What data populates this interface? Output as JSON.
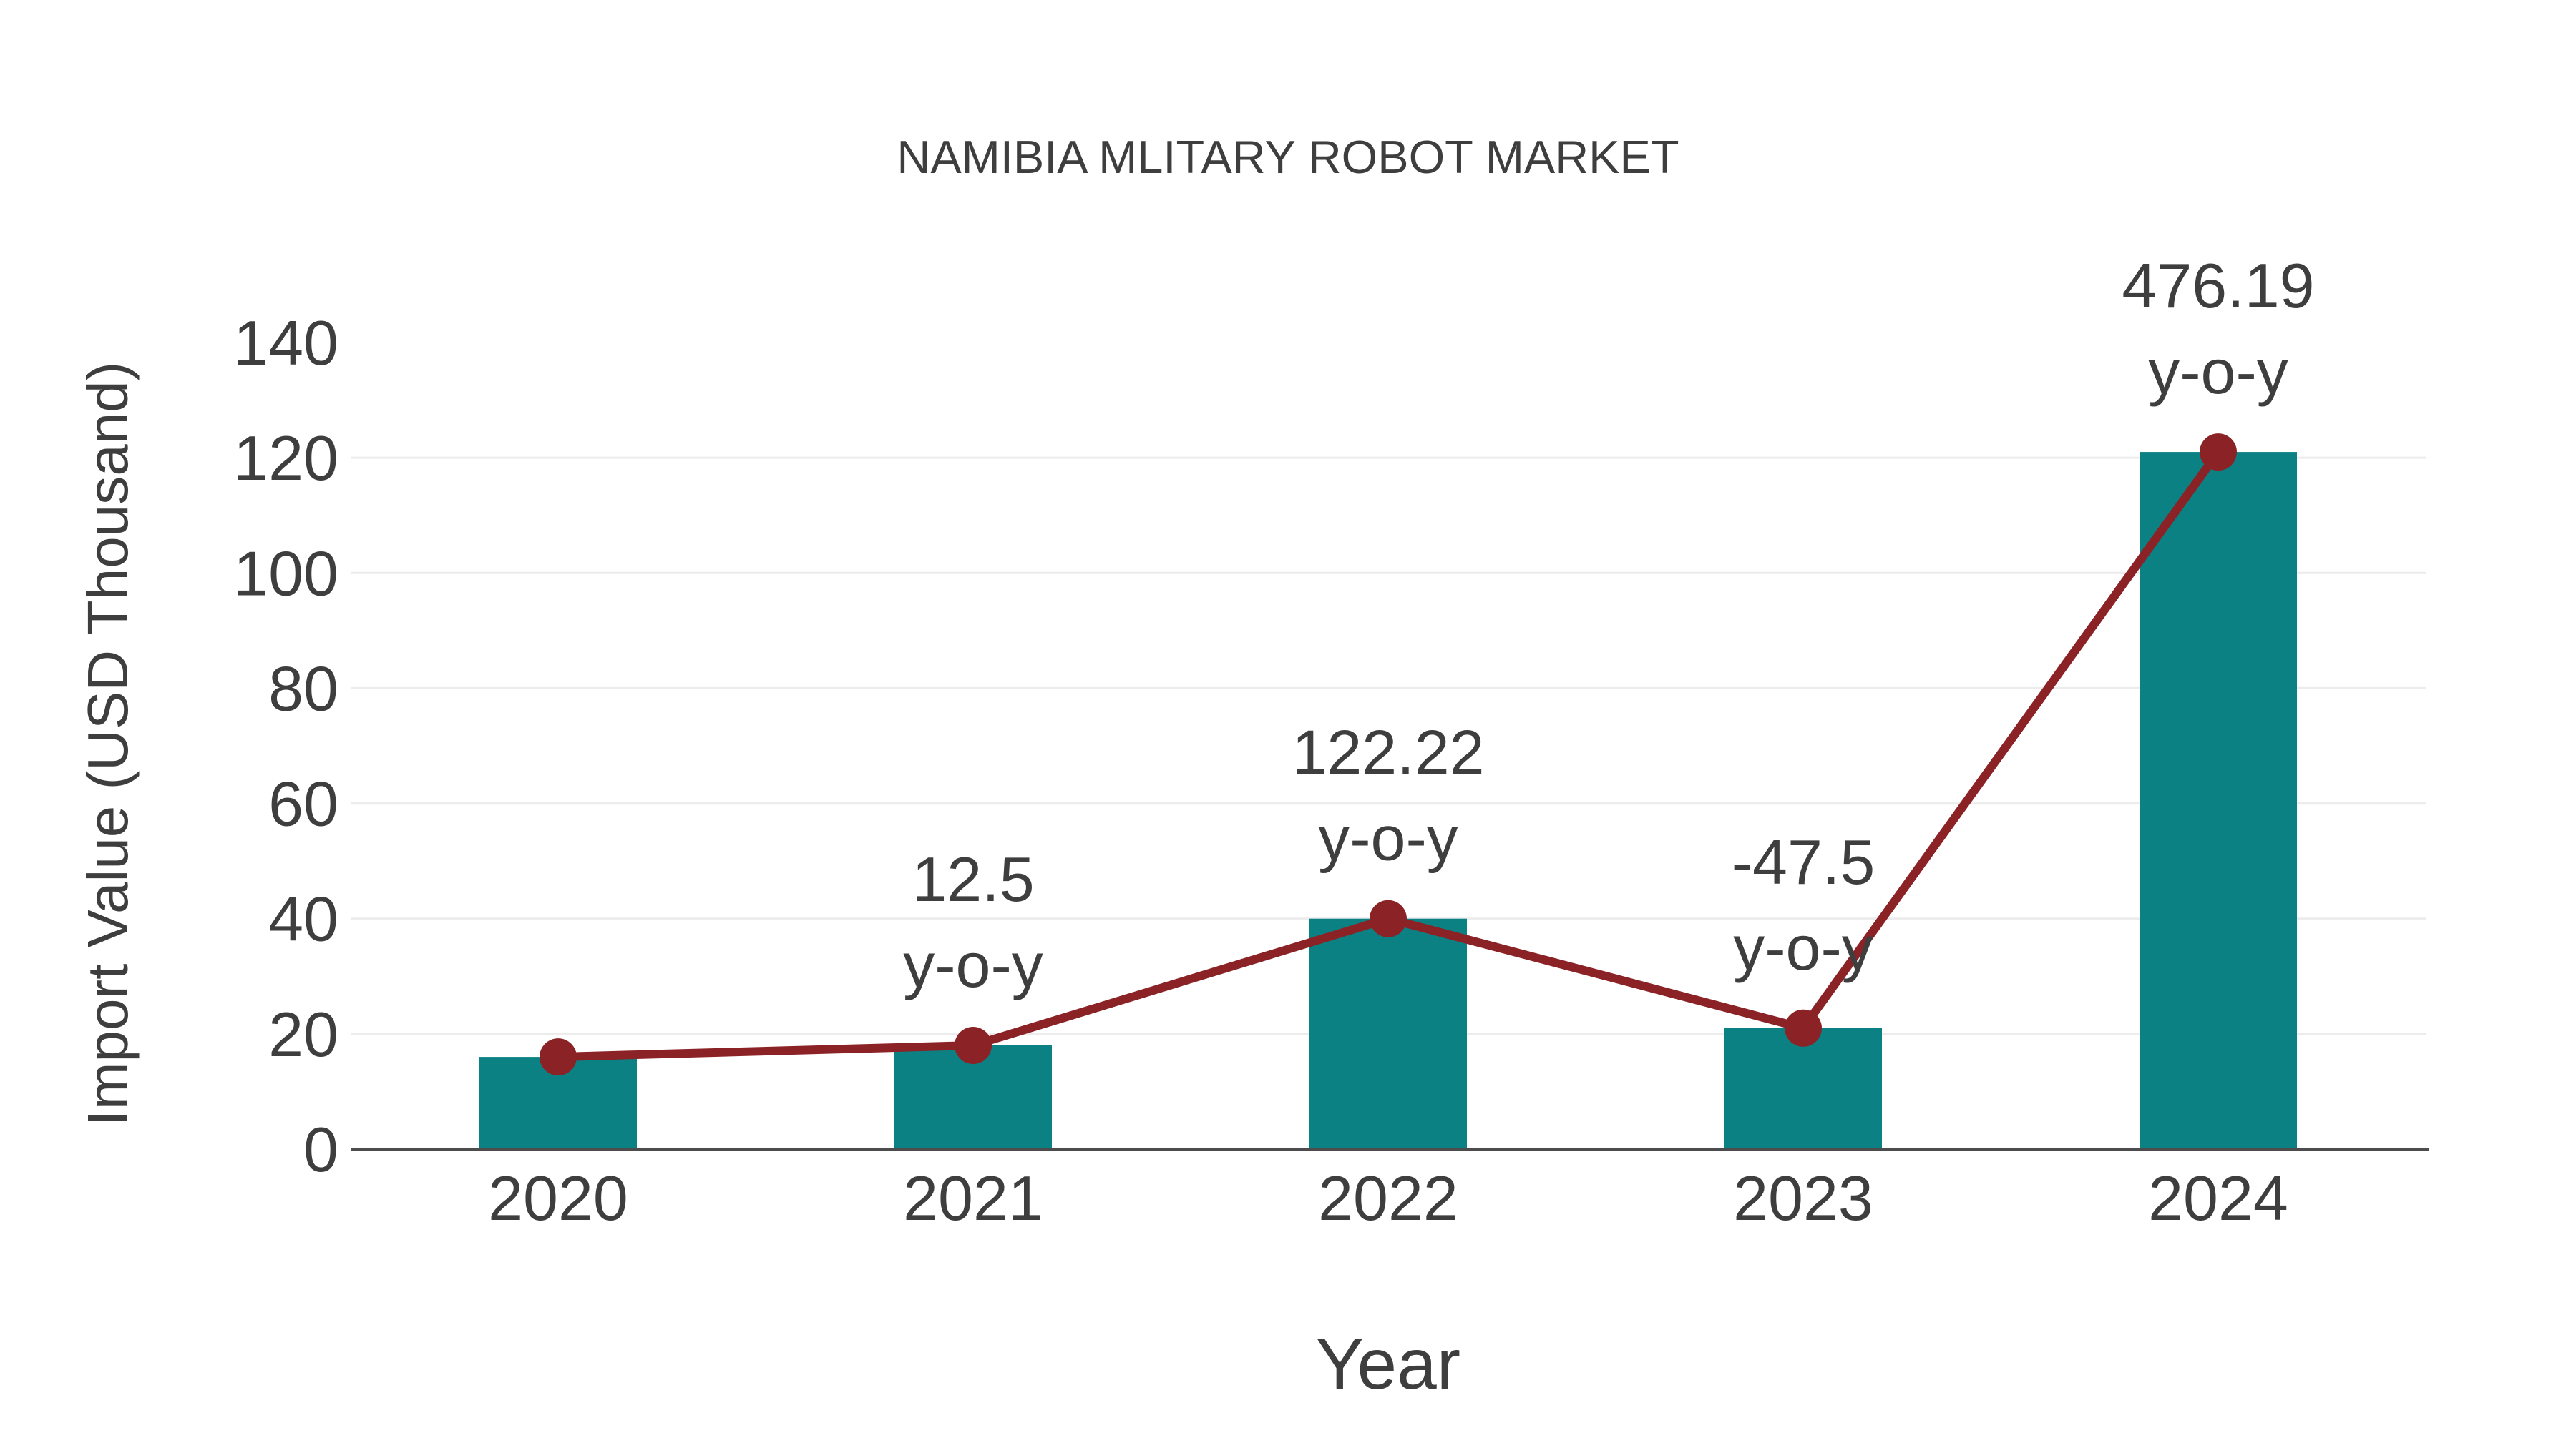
{
  "chart_data": {
    "type": "bar",
    "title": "NAMIBIA MLITARY ROBOT MARKET",
    "xlabel": "Year",
    "ylabel": "Import Value (USD Thousand)",
    "categories": [
      "2020",
      "2021",
      "2022",
      "2023",
      "2024"
    ],
    "series": [
      {
        "name": "import-value-bars",
        "type": "bar",
        "values": [
          16,
          18,
          40,
          21,
          121
        ]
      },
      {
        "name": "import-value-trend",
        "type": "line",
        "values": [
          16,
          18,
          40,
          21,
          121
        ]
      }
    ],
    "annotations": [
      {
        "category": "2021",
        "label": "12.5",
        "suffix": "y-o-y"
      },
      {
        "category": "2022",
        "label": "122.22",
        "suffix": "y-o-y"
      },
      {
        "category": "2023",
        "label": "-47.5",
        "suffix": "y-o-y"
      },
      {
        "category": "2024",
        "label": "476.19",
        "suffix": "y-o-y"
      }
    ],
    "yticks": [
      0,
      20,
      40,
      60,
      80,
      100,
      120,
      140
    ],
    "ylim": [
      0,
      140
    ],
    "grid": "horizontal",
    "legend": "none",
    "colors": {
      "bar": "#0b8184",
      "line": "#8a2226",
      "marker": "#8a2226",
      "text": "#3e3e3e",
      "grid": "#ececec",
      "axis": "#4d4d4d",
      "background": "#ffffff"
    }
  }
}
